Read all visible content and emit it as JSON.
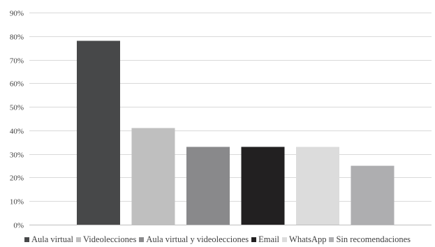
{
  "chart_data": {
    "type": "bar",
    "categories": [
      "Aula virtual",
      "Videolecciones",
      "Aula virtual y videolecciones",
      "Email",
      "WhatsApp",
      "Sin recomendaciones"
    ],
    "values": [
      78,
      41,
      33,
      33,
      33,
      25
    ],
    "colors": [
      "#474849",
      "#bfbfbf",
      "#89898b",
      "#222021",
      "#dcdcdc",
      "#aeaeb0"
    ],
    "ylim": [
      0,
      90
    ],
    "yticks": [
      "0%",
      "10%",
      "20%",
      "30%",
      "40%",
      "50%",
      "60%",
      "70%",
      "80%",
      "90%"
    ],
    "ytick_values": [
      0,
      10,
      20,
      30,
      40,
      50,
      60,
      70,
      80,
      90
    ],
    "grid": true,
    "legend_position": "bottom",
    "title": "",
    "xlabel": "",
    "ylabel": ""
  }
}
